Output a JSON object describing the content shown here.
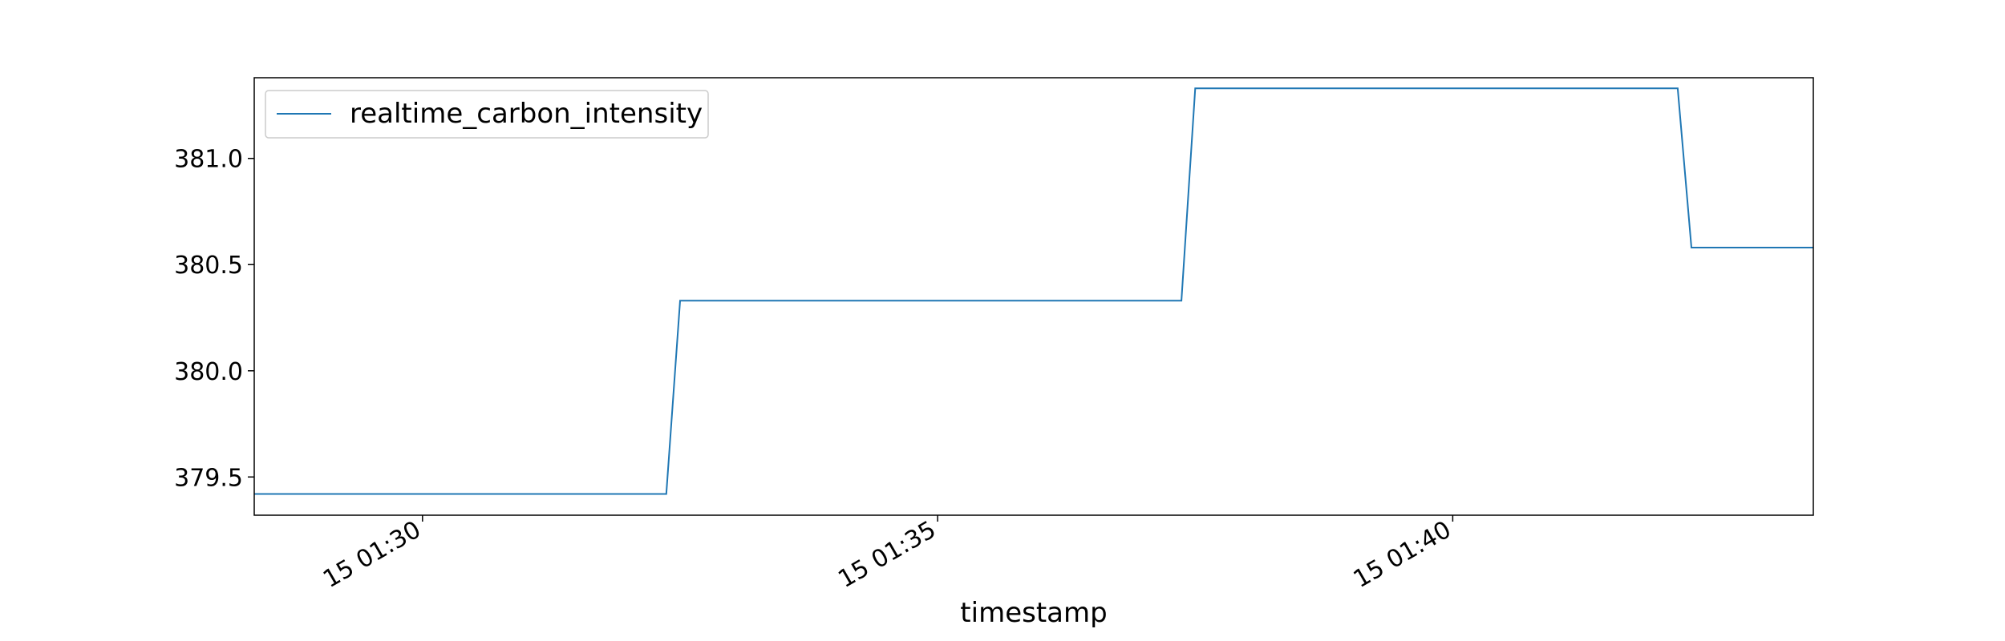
{
  "chart_data": {
    "type": "line",
    "xlabel": "timestamp",
    "ylabel": "",
    "x_range": [
      "15 01:28:22",
      "15 01:43:30"
    ],
    "ylim": [
      379.32,
      381.38
    ],
    "y_ticks": [
      379.5,
      380.0,
      380.5,
      381.0
    ],
    "y_tick_labels": [
      "379.5",
      "380.0",
      "380.5",
      "381.0"
    ],
    "x_ticks": [
      "15 01:30:00",
      "15 01:35:00",
      "15 01:40:00"
    ],
    "x_tick_labels": [
      "15 01:30",
      "15 01:35",
      "15 01:40"
    ],
    "grid": false,
    "legend_position": "top-left",
    "series": [
      {
        "name": "realtime_carbon_intensity",
        "color": "#1f77b4",
        "x": [
          "15 01:28:22",
          "15 01:32:22",
          "15 01:32:30",
          "15 01:37:22",
          "15 01:37:30",
          "15 01:42:11",
          "15 01:42:19",
          "15 01:43:30"
        ],
        "values": [
          379.42,
          379.42,
          380.33,
          380.33,
          381.33,
          381.33,
          380.58,
          380.58
        ]
      }
    ]
  }
}
